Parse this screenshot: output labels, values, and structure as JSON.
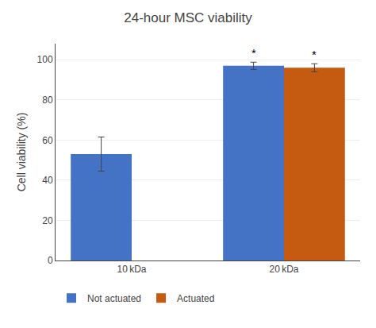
{
  "chart_data": {
    "type": "bar",
    "title": "24-hour MSC viability",
    "ylabel": "Cell viability (%)",
    "categories": [
      "10 kDa",
      "20 kDa"
    ],
    "series": [
      {
        "name": "Not actuated",
        "color": "#4472C4",
        "values": [
          53.0,
          97.0
        ],
        "errors": [
          8.5,
          1.8
        ]
      },
      {
        "name": "Actuated",
        "color": "#C55A11",
        "values": [
          null,
          96.0
        ],
        "errors": [
          null,
          2.0
        ]
      }
    ],
    "annotations": [
      {
        "text": "*",
        "category": "20 kDa",
        "series": "Not actuated"
      },
      {
        "text": "*",
        "category": "20 kDa",
        "series": "Actuated"
      }
    ],
    "ylim": [
      0,
      108
    ],
    "yticks": [
      0,
      20,
      40,
      60,
      80,
      100
    ],
    "grid": true,
    "legend": "bottom"
  }
}
